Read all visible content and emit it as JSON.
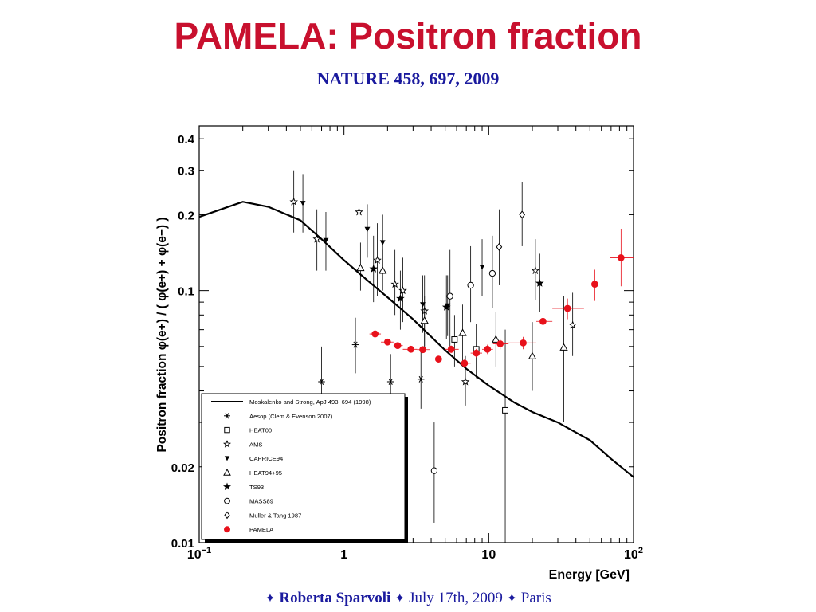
{
  "slide": {
    "title": "PAMELA: Positron fraction",
    "subtitle": "NATURE 458, 697, 2009"
  },
  "footer": {
    "separator": "✦",
    "author": "Roberta Sparvoli",
    "date": "July 17th, 2009",
    "place": "Paris"
  },
  "colors": {
    "pamela": "#e8111b",
    "other": "#000000",
    "title": "#c8102e",
    "subtitle": "#1a1a9e"
  },
  "chart_data": {
    "type": "scatter",
    "title": "",
    "xlabel": "Energy [GeV]",
    "ylabel": "Positron fraction φ(e+) / ( φ(e+) + φ(e−) )",
    "xscale": "log",
    "yscale": "log",
    "xlim": [
      0.1,
      100
    ],
    "ylim": [
      0.01,
      0.45
    ],
    "xticks": [
      {
        "v": 0.1,
        "base": "10",
        "exp": "−1"
      },
      {
        "v": 1,
        "base": "1",
        "exp": ""
      },
      {
        "v": 10,
        "base": "10",
        "exp": ""
      },
      {
        "v": 100,
        "base": "10",
        "exp": "2"
      }
    ],
    "yticks": [
      {
        "v": 0.01,
        "label": "0.01"
      },
      {
        "v": 0.02,
        "label": "0.02"
      },
      {
        "v": 0.1,
        "label": "0.1"
      },
      {
        "v": 0.2,
        "label": "0.2"
      },
      {
        "v": 0.3,
        "label": "0.3"
      },
      {
        "v": 0.4,
        "label": "0.4"
      }
    ],
    "legend_position": "bottom-left",
    "grid": false,
    "series": [
      {
        "name": "Moskalenko and Strong, ApJ 493, 694 (1998)",
        "kind": "line",
        "points": [
          [
            0.1,
            0.196
          ],
          [
            0.2,
            0.225
          ],
          [
            0.3,
            0.215
          ],
          [
            0.5,
            0.19
          ],
          [
            0.7,
            0.16
          ],
          [
            1.0,
            0.132
          ],
          [
            1.5,
            0.108
          ],
          [
            2.0,
            0.094
          ],
          [
            3.0,
            0.077
          ],
          [
            5.0,
            0.058
          ],
          [
            7.0,
            0.049
          ],
          [
            10.0,
            0.042
          ],
          [
            15.0,
            0.036
          ],
          [
            20.0,
            0.033
          ],
          [
            30.0,
            0.03
          ],
          [
            50.0,
            0.0255
          ],
          [
            70.0,
            0.0215
          ],
          [
            100.0,
            0.0182
          ]
        ]
      },
      {
        "name": "PAMELA",
        "marker": "filled-circle",
        "color": "#e8111b",
        "points": [
          {
            "x": 1.64,
            "y": 0.0673,
            "xlo": 1.5,
            "xhi": 1.8,
            "ylo": 0.066,
            "yhi": 0.0686
          },
          {
            "x": 2.0,
            "y": 0.0625,
            "xlo": 1.8,
            "xhi": 2.2,
            "ylo": 0.0613,
            "yhi": 0.0637
          },
          {
            "x": 2.35,
            "y": 0.0605,
            "xlo": 2.2,
            "xhi": 2.55,
            "ylo": 0.0593,
            "yhi": 0.0617
          },
          {
            "x": 2.9,
            "y": 0.0585,
            "xlo": 2.55,
            "xhi": 3.2,
            "ylo": 0.0573,
            "yhi": 0.0597
          },
          {
            "x": 3.5,
            "y": 0.0583,
            "xlo": 3.2,
            "xhi": 3.9,
            "ylo": 0.057,
            "yhi": 0.0596
          },
          {
            "x": 4.5,
            "y": 0.0535,
            "xlo": 3.9,
            "xhi": 5.0,
            "ylo": 0.052,
            "yhi": 0.055
          },
          {
            "x": 5.5,
            "y": 0.0585,
            "xlo": 5.0,
            "xhi": 6.2,
            "ylo": 0.0565,
            "yhi": 0.0605
          },
          {
            "x": 6.8,
            "y": 0.0515,
            "xlo": 6.2,
            "xhi": 7.5,
            "ylo": 0.0497,
            "yhi": 0.0533
          },
          {
            "x": 8.2,
            "y": 0.0565,
            "xlo": 7.5,
            "xhi": 9.0,
            "ylo": 0.0543,
            "yhi": 0.0587
          },
          {
            "x": 9.8,
            "y": 0.0585,
            "xlo": 9.0,
            "xhi": 10.7,
            "ylo": 0.056,
            "yhi": 0.061
          },
          {
            "x": 12.0,
            "y": 0.0615,
            "xlo": 10.7,
            "xhi": 13.7,
            "ylo": 0.0585,
            "yhi": 0.0645
          },
          {
            "x": 17.3,
            "y": 0.062,
            "xlo": 13.7,
            "xhi": 21.3,
            "ylo": 0.0585,
            "yhi": 0.0655
          },
          {
            "x": 23.7,
            "y": 0.0755,
            "xlo": 21.3,
            "xhi": 27.5,
            "ylo": 0.071,
            "yhi": 0.08
          },
          {
            "x": 35.0,
            "y": 0.085,
            "xlo": 27.5,
            "xhi": 45.5,
            "ylo": 0.077,
            "yhi": 0.093
          },
          {
            "x": 54.0,
            "y": 0.106,
            "xlo": 45.5,
            "xhi": 69.0,
            "ylo": 0.091,
            "yhi": 0.121
          },
          {
            "x": 82.0,
            "y": 0.135,
            "xlo": 69.0,
            "xhi": 100.0,
            "ylo": 0.104,
            "yhi": 0.176
          }
        ]
      },
      {
        "name": "Aesop (Clem & Evenson 2007)",
        "marker": "asterisk",
        "color": "#000000",
        "points": [
          {
            "x": 0.7,
            "y": 0.0435,
            "ylo": 0.03,
            "yhi": 0.06
          },
          {
            "x": 1.2,
            "y": 0.061,
            "ylo": 0.047,
            "yhi": 0.078
          },
          {
            "x": 2.1,
            "y": 0.0435,
            "ylo": 0.033,
            "yhi": 0.056
          },
          {
            "x": 3.4,
            "y": 0.0445,
            "ylo": 0.034,
            "yhi": 0.057
          }
        ]
      },
      {
        "name": "HEAT00",
        "marker": "open-square",
        "color": "#000000",
        "points": [
          {
            "x": 5.8,
            "y": 0.064,
            "ylo": 0.05,
            "yhi": 0.08
          },
          {
            "x": 8.2,
            "y": 0.0585,
            "ylo": 0.045,
            "yhi": 0.074
          },
          {
            "x": 13.0,
            "y": 0.0335,
            "ylo": 0.01,
            "yhi": 0.07
          }
        ]
      },
      {
        "name": "AMS",
        "marker": "open-star",
        "color": "#000000",
        "points": [
          {
            "x": 0.45,
            "y": 0.225,
            "ylo": 0.17,
            "yhi": 0.3
          },
          {
            "x": 0.65,
            "y": 0.16,
            "ylo": 0.12,
            "yhi": 0.21
          },
          {
            "x": 1.27,
            "y": 0.205,
            "ylo": 0.15,
            "yhi": 0.28
          },
          {
            "x": 1.7,
            "y": 0.132,
            "ylo": 0.095,
            "yhi": 0.185
          },
          {
            "x": 2.25,
            "y": 0.106,
            "ylo": 0.08,
            "yhi": 0.145
          },
          {
            "x": 2.55,
            "y": 0.1,
            "ylo": 0.075,
            "yhi": 0.135
          },
          {
            "x": 3.6,
            "y": 0.083,
            "ylo": 0.06,
            "yhi": 0.115
          },
          {
            "x": 6.9,
            "y": 0.0435,
            "ylo": 0.035,
            "yhi": 0.055
          },
          {
            "x": 21.0,
            "y": 0.12,
            "ylo": 0.092,
            "yhi": 0.16
          },
          {
            "x": 38.0,
            "y": 0.073,
            "ylo": 0.055,
            "yhi": 0.098
          }
        ]
      },
      {
        "name": "CAPRICE94",
        "marker": "filled-triangle-down",
        "color": "#000000",
        "points": [
          {
            "x": 0.52,
            "y": 0.222,
            "ylo": 0.17,
            "yhi": 0.29
          },
          {
            "x": 0.75,
            "y": 0.158,
            "ylo": 0.12,
            "yhi": 0.205
          },
          {
            "x": 1.45,
            "y": 0.175,
            "ylo": 0.135,
            "yhi": 0.22
          },
          {
            "x": 1.85,
            "y": 0.155,
            "ylo": 0.12,
            "yhi": 0.2
          },
          {
            "x": 3.5,
            "y": 0.088,
            "ylo": 0.068,
            "yhi": 0.115
          },
          {
            "x": 5.2,
            "y": 0.087,
            "ylo": 0.066,
            "yhi": 0.115
          },
          {
            "x": 9.0,
            "y": 0.124,
            "ylo": 0.095,
            "yhi": 0.16
          }
        ]
      },
      {
        "name": "HEAT94+95",
        "marker": "open-triangle",
        "color": "#000000",
        "points": [
          {
            "x": 1.3,
            "y": 0.123,
            "ylo": 0.1,
            "yhi": 0.155
          },
          {
            "x": 1.85,
            "y": 0.12,
            "ylo": 0.1,
            "yhi": 0.145
          },
          {
            "x": 3.6,
            "y": 0.076,
            "ylo": 0.06,
            "yhi": 0.095
          },
          {
            "x": 6.6,
            "y": 0.068,
            "ylo": 0.052,
            "yhi": 0.088
          },
          {
            "x": 11.2,
            "y": 0.064,
            "ylo": 0.05,
            "yhi": 0.082
          },
          {
            "x": 20.0,
            "y": 0.055,
            "ylo": 0.04,
            "yhi": 0.075
          },
          {
            "x": 33.0,
            "y": 0.0595,
            "ylo": 0.03,
            "yhi": 0.095
          }
        ]
      },
      {
        "name": "TS93",
        "marker": "filled-star",
        "color": "#000000",
        "points": [
          {
            "x": 1.6,
            "y": 0.122,
            "ylo": 0.09,
            "yhi": 0.165
          },
          {
            "x": 2.45,
            "y": 0.093,
            "ylo": 0.07,
            "yhi": 0.12
          },
          {
            "x": 5.1,
            "y": 0.086,
            "ylo": 0.064,
            "yhi": 0.115
          },
          {
            "x": 22.5,
            "y": 0.107,
            "ylo": 0.082,
            "yhi": 0.14
          }
        ]
      },
      {
        "name": "MASS89",
        "marker": "open-circle",
        "color": "#000000",
        "points": [
          {
            "x": 4.2,
            "y": 0.0193,
            "ylo": 0.012,
            "yhi": 0.03
          },
          {
            "x": 5.4,
            "y": 0.095,
            "ylo": 0.06,
            "yhi": 0.145
          },
          {
            "x": 7.5,
            "y": 0.105,
            "ylo": 0.075,
            "yhi": 0.15
          },
          {
            "x": 10.6,
            "y": 0.117,
            "ylo": 0.085,
            "yhi": 0.165
          }
        ]
      },
      {
        "name": "Muller & Tang 1987",
        "marker": "open-diamond",
        "color": "#000000",
        "points": [
          {
            "x": 11.8,
            "y": 0.149,
            "ylo": 0.105,
            "yhi": 0.21
          },
          {
            "x": 17.0,
            "y": 0.2,
            "ylo": 0.15,
            "yhi": 0.27
          }
        ]
      }
    ]
  }
}
